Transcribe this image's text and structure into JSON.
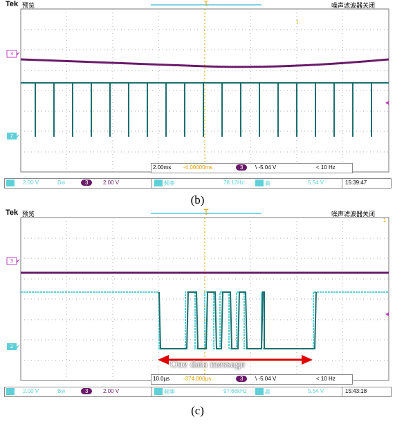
{
  "scope_b": {
    "brand": "Tek",
    "mode": "预览",
    "filter_status": "噪声滤波器关闭",
    "marker_c1": "1",
    "marker_c2": "2",
    "marker_t": "T",
    "timebase": "2.00ms",
    "trig_offset": "-4.00000ms",
    "ch3_label": "3",
    "trig_level": "\\ -5.04 V",
    "trig_freq": "< 10 Hz",
    "ch1_scale": "2.00 V",
    "bw": "Bw",
    "ch3_scale": "2.00 V",
    "meas1_label": "频率",
    "meas1_value": "78.12Hz",
    "meas2_label": "高",
    "meas2_value": "5.54 V",
    "clock": "15:39:47",
    "caption": "(b)"
  },
  "scope_c": {
    "brand": "Tek",
    "mode": "预览",
    "filter_status": "噪声滤波器关闭",
    "marker_c1": "1",
    "marker_c2": "2",
    "marker_t": "T",
    "timebase": "10.0µs",
    "trig_offset": "-374.000µs",
    "ch3_label": "3",
    "trig_level": "\\ -5.04 V",
    "trig_freq": "< 10 Hz",
    "ch1_scale": "2.00 V",
    "bw": "Bw",
    "ch3_scale": "2.00 V",
    "meas1_label": "频率",
    "meas1_value": "97.66kHz",
    "meas2_label": "高",
    "meas2_value": "5.54 V",
    "clock": "15:43:18",
    "annotation": "One data message",
    "caption": "(c)"
  },
  "colors": {
    "grid_dot": "#9a9a9a",
    "ch1": "#5fd0d8",
    "ch2": "#1a6f6f",
    "ch3": "#6a1a6a",
    "magenta": "#c040c0",
    "trigger": "#e0a000",
    "arrow": "#e00000"
  }
}
